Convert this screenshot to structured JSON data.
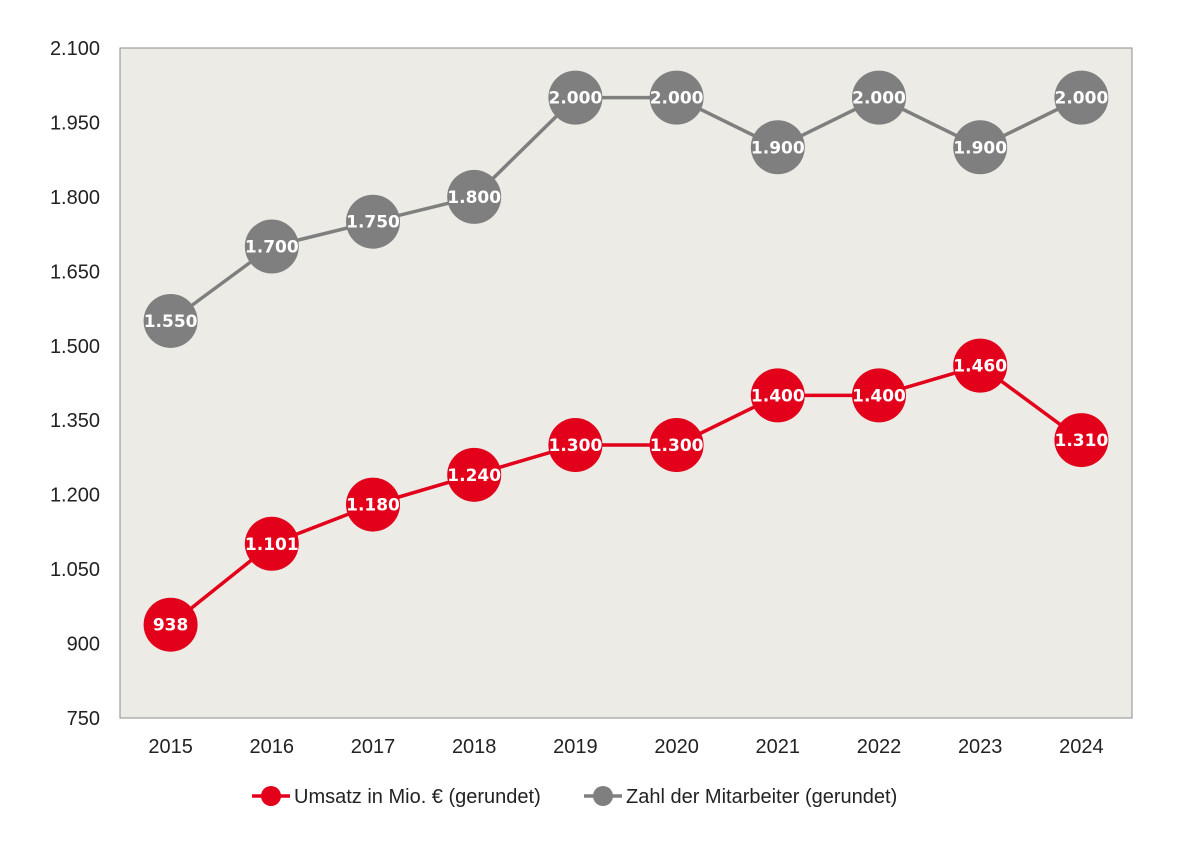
{
  "chart_data": {
    "type": "line",
    "categories": [
      "2015",
      "2016",
      "2017",
      "2018",
      "2019",
      "2020",
      "2021",
      "2022",
      "2023",
      "2024"
    ],
    "ylim": [
      750,
      2100
    ],
    "yticks": [
      750,
      900,
      1050,
      1200,
      1350,
      1500,
      1650,
      1800,
      1950,
      2100
    ],
    "ytick_labels": [
      "750",
      "900",
      "1.050",
      "1.200",
      "1.350",
      "1.500",
      "1.650",
      "1.800",
      "1.950",
      "2.100"
    ],
    "grid": false,
    "legend_position": "bottom",
    "plot_background": "#ecebe6",
    "series": [
      {
        "name": "Umsatz in Mio. € (gerundet)",
        "color": "#e2001a",
        "values": [
          938,
          1101,
          1180,
          1240,
          1300,
          1300,
          1400,
          1400,
          1460,
          1310
        ],
        "labels": [
          "938",
          "1.101",
          "1.180",
          "1.240",
          "1.300",
          "1.300",
          "1.400",
          "1.400",
          "1.460",
          "1.310"
        ]
      },
      {
        "name": "Zahl der Mitarbeiter (gerundet)",
        "color": "#7f7f7f",
        "values": [
          1550,
          1700,
          1750,
          1800,
          2000,
          2000,
          1900,
          2000,
          1900,
          2000
        ],
        "labels": [
          "1.550",
          "1.700",
          "1.750",
          "1.800",
          "2.000",
          "2.000",
          "1.900",
          "2.000",
          "1.900",
          "2.000"
        ]
      }
    ]
  }
}
